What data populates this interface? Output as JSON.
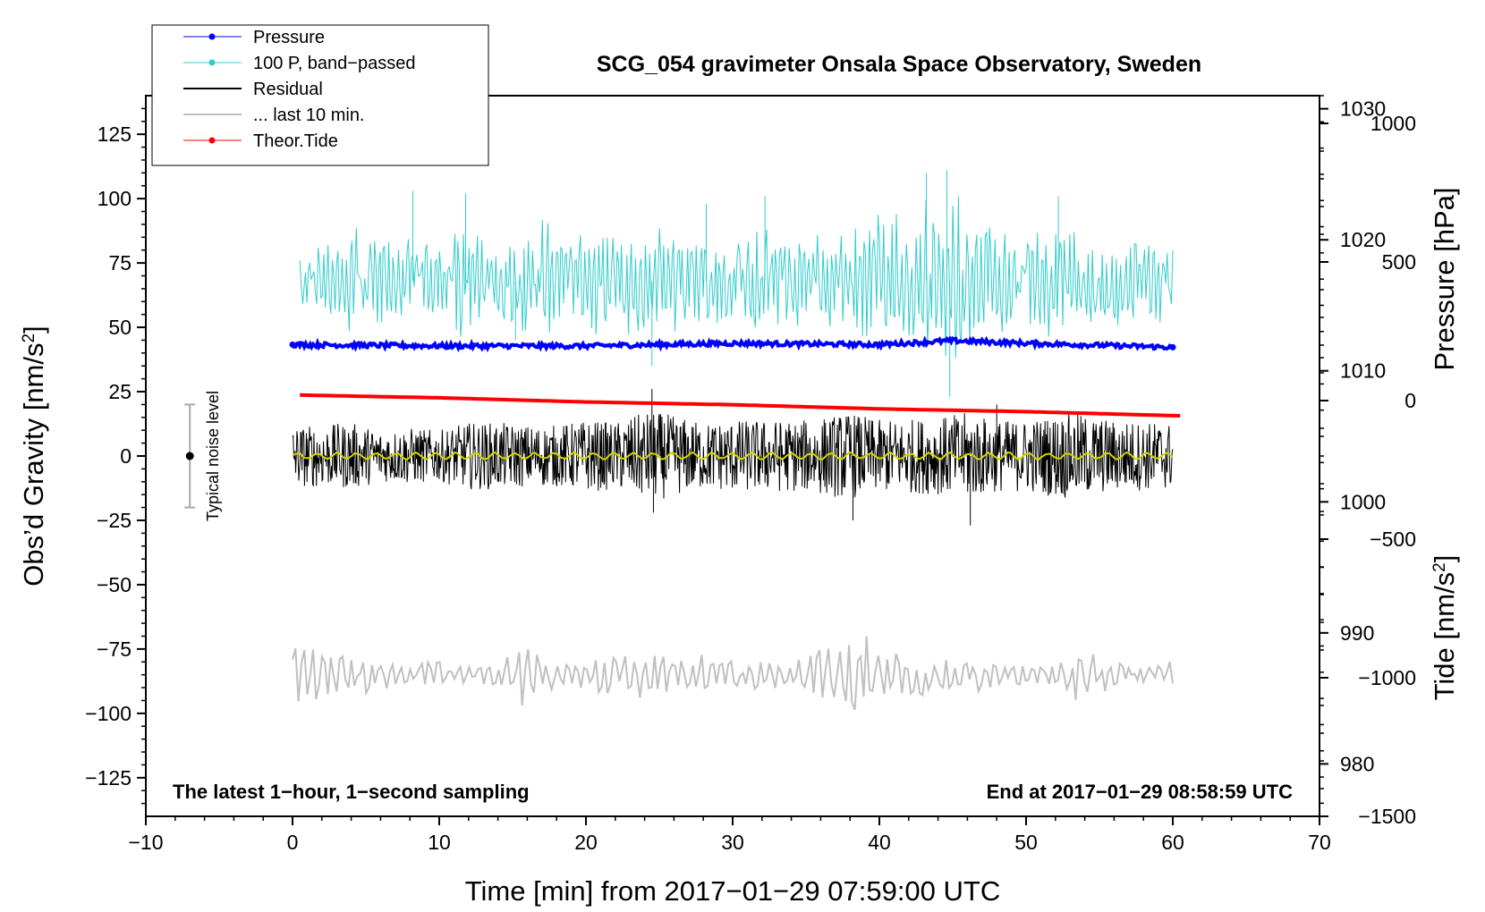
{
  "chart_data": {
    "type": "line",
    "title": "SCG_054 gravimeter Onsala Space Observatory, Sweden",
    "xlabel": "Time [min] from 2017−01−29 07:59:00 UTC",
    "ylabel_left": "Obs’d Gravity [nm/s",
    "ylabel_left_sup": "2",
    "ylabel_left_close": "]",
    "ylabel_right_pressure": "Pressure [hPa]",
    "ylabel_right_tide": "Tide [nm/s",
    "ylabel_right_tide_sup": "2",
    "ylabel_right_tide_close": "]",
    "xlim": [
      -10,
      70
    ],
    "ylim_left": [
      -140,
      140
    ],
    "pressure_axis": {
      "range": [
        976,
        1031
      ],
      "ticks": [
        980,
        990,
        1000,
        1010,
        1020,
        1030
      ]
    },
    "tide_axis": {
      "range": [
        -1500,
        1100
      ],
      "ticks": [
        -1500,
        -1000,
        -500,
        0,
        500,
        1000
      ]
    },
    "x_ticks": [
      -10,
      0,
      10,
      20,
      30,
      40,
      50,
      60,
      70
    ],
    "x_tick_labels": [
      "−10",
      "0",
      "10",
      "20",
      "30",
      "40",
      "50",
      "60",
      "70"
    ],
    "y_ticks": [
      -125,
      -100,
      -75,
      -50,
      -25,
      0,
      25,
      50,
      75,
      100,
      125
    ],
    "y_tick_labels": [
      "−125",
      "−100",
      "−75",
      "−50",
      "−25",
      "0",
      "25",
      "50",
      "75",
      "100",
      "125"
    ],
    "pressure_tick_labels": [
      "980",
      "990",
      "1000",
      "1010",
      "1020",
      "1030"
    ],
    "tide_tick_labels": [
      "−1500",
      "−1000",
      "−500",
      "0",
      "500",
      "1000"
    ],
    "bottom_left_note": "The latest 1−hour, 1−second sampling",
    "bottom_right_note": "End at 2017−01−29 08:58:59 UTC",
    "noise_bar": {
      "label": "Typical noise level",
      "x": -7,
      "center": 0,
      "low": -20,
      "high": 20
    },
    "legend": [
      {
        "label": "Pressure",
        "color": "#0000ff",
        "marker": true
      },
      {
        "label": "100 P, band−passed",
        "color": "#33cccc",
        "marker": true
      },
      {
        "label": "Residual",
        "color": "#000000",
        "marker": false
      },
      {
        "label": "... last 10 min.",
        "color": "#c0c0c0",
        "marker": false
      },
      {
        "label": "Theor.Tide",
        "color": "#ff0000",
        "marker": true
      }
    ],
    "series": [
      {
        "name": "Pressure",
        "axis": "pressure",
        "color": "#0000ff",
        "x_start": 0,
        "x_end": 60,
        "x": [
          0,
          10,
          20,
          30,
          40,
          45,
          50,
          60
        ],
        "y": [
          1012.0,
          1011.9,
          1011.9,
          1012.1,
          1012.0,
          1012.3,
          1012.1,
          1011.8
        ]
      },
      {
        "name": "100 P, band−passed",
        "axis": "left",
        "color": "#33cccc",
        "x_start": 0.5,
        "x_end": 60,
        "center": 68,
        "envelope": [
          [
            0.5,
            13
          ],
          [
            2,
            14
          ],
          [
            4,
            22
          ],
          [
            6,
            18
          ],
          [
            8,
            20
          ],
          [
            10,
            16
          ],
          [
            11.5,
            24
          ],
          [
            13,
            18
          ],
          [
            15,
            20
          ],
          [
            18,
            26
          ],
          [
            21,
            22
          ],
          [
            24,
            28
          ],
          [
            25,
            22
          ],
          [
            28,
            22
          ],
          [
            30,
            20
          ],
          [
            32,
            24
          ],
          [
            34,
            20
          ],
          [
            36,
            20
          ],
          [
            40,
            28
          ],
          [
            42,
            30
          ],
          [
            44,
            38
          ],
          [
            45,
            40
          ],
          [
            46,
            26
          ],
          [
            50,
            22
          ],
          [
            52,
            24
          ],
          [
            54,
            20
          ],
          [
            56,
            20
          ],
          [
            60,
            16
          ]
        ],
        "spikes": [
          [
            8.2,
            103
          ],
          [
            11.8,
            102
          ],
          [
            15.2,
            45
          ],
          [
            24.5,
            35
          ],
          [
            28.2,
            98
          ],
          [
            32.2,
            101
          ],
          [
            43.2,
            110
          ],
          [
            44.6,
            111
          ],
          [
            44.8,
            23
          ],
          [
            52.2,
            101
          ]
        ]
      },
      {
        "name": "Residual",
        "axis": "left",
        "color": "#000000",
        "x_start": 0,
        "x_end": 60,
        "center": 0,
        "envelope": [
          [
            0,
            12
          ],
          [
            2,
            12
          ],
          [
            4,
            13
          ],
          [
            6,
            10
          ],
          [
            8,
            11
          ],
          [
            10,
            10
          ],
          [
            12,
            13
          ],
          [
            14,
            13
          ],
          [
            16,
            12
          ],
          [
            18,
            12
          ],
          [
            20,
            14
          ],
          [
            22,
            13
          ],
          [
            24,
            17
          ],
          [
            25,
            17
          ],
          [
            28,
            13
          ],
          [
            30,
            14
          ],
          [
            32,
            14
          ],
          [
            35,
            14
          ],
          [
            38,
            17
          ],
          [
            40,
            14
          ],
          [
            44,
            15
          ],
          [
            46,
            17
          ],
          [
            48,
            14
          ],
          [
            50,
            14
          ],
          [
            53,
            17
          ],
          [
            56,
            14
          ],
          [
            60,
            13
          ]
        ],
        "spikes": [
          [
            24.5,
            26
          ],
          [
            24.6,
            -22
          ],
          [
            38.2,
            -25
          ],
          [
            46.2,
            -27
          ],
          [
            48,
            20
          ]
        ]
      },
      {
        "name": "Residual (smoothed)",
        "axis": "left",
        "color": "#d4d400",
        "x_start": 0,
        "x_end": 60,
        "center": 0,
        "amplitude": 1.5
      },
      {
        "name": "... last 10 min.",
        "axis": "left",
        "color": "#c0c0c0",
        "x_start": 0,
        "x_end": 60,
        "center": -85,
        "envelope": [
          [
            0,
            14
          ],
          [
            2,
            9
          ],
          [
            4,
            12
          ],
          [
            6,
            6
          ],
          [
            8,
            5
          ],
          [
            10,
            6
          ],
          [
            12,
            5
          ],
          [
            14,
            5
          ],
          [
            15.5,
            20
          ],
          [
            17,
            6
          ],
          [
            20,
            8
          ],
          [
            22,
            9
          ],
          [
            24,
            9
          ],
          [
            26,
            7
          ],
          [
            28,
            8
          ],
          [
            30,
            8
          ],
          [
            32,
            6
          ],
          [
            34,
            6
          ],
          [
            38,
            18
          ],
          [
            39,
            18
          ],
          [
            40,
            10
          ],
          [
            42,
            8
          ],
          [
            44,
            9
          ],
          [
            46,
            7
          ],
          [
            48,
            6
          ],
          [
            50,
            5
          ],
          [
            52,
            5
          ],
          [
            53.5,
            12
          ],
          [
            56,
            6
          ],
          [
            58,
            6
          ],
          [
            60,
            5
          ]
        ]
      },
      {
        "name": "Theor.Tide",
        "axis": "tide",
        "color": "#ff0000",
        "x_start": 0.5,
        "x_end": 60.5,
        "x": [
          0.5,
          10,
          20,
          30,
          40,
          50,
          60.5
        ],
        "y": [
          20,
          10,
          -5,
          -15,
          -30,
          -40,
          -55
        ]
      }
    ]
  }
}
